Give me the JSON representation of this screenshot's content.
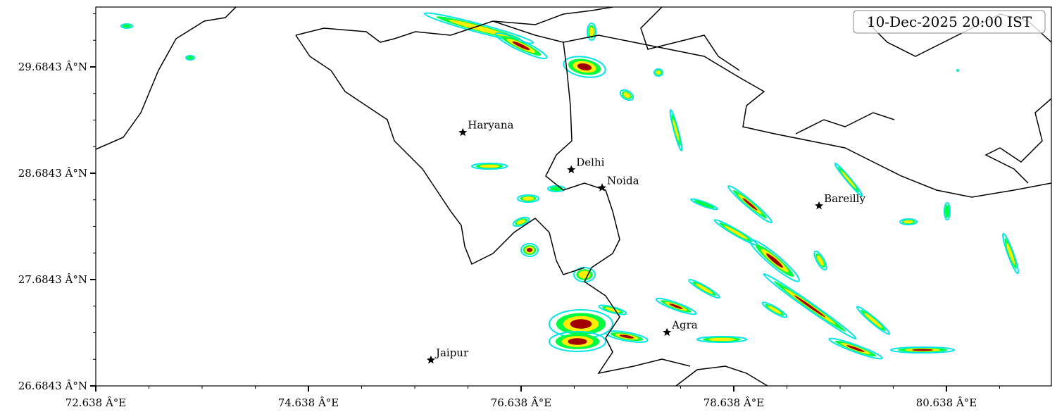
{
  "chart_data": {
    "type": "map",
    "timestamp": "10-Dec-2025 20:00 IST",
    "xlim": [
      72.638,
      81.625
    ],
    "ylim": [
      26.6843,
      30.247
    ],
    "xticks": [
      {
        "value": 72.638,
        "label": "72.638 Â°E"
      },
      {
        "value": 74.638,
        "label": "74.638 Â°E"
      },
      {
        "value": 76.638,
        "label": "76.638 Â°E"
      },
      {
        "value": 78.638,
        "label": "78.638 Â°E"
      },
      {
        "value": 80.638,
        "label": "80.638 Â°E"
      }
    ],
    "yticks": [
      {
        "value": 26.6843,
        "label": "26.6843 Â°N"
      },
      {
        "value": 27.6843,
        "label": "27.6843 Â°N"
      },
      {
        "value": 28.6843,
        "label": "28.6843 Â°N"
      },
      {
        "value": 29.6843,
        "label": "29.6843 Â°N"
      }
    ],
    "cities": {
      "names": [
        "Haryana",
        "Delhi",
        "Noida",
        "Bareilly",
        "Agra",
        "Jaipur"
      ],
      "lon": [
        76.09,
        77.11,
        77.4,
        79.44,
        78.01,
        75.79
      ],
      "lat": [
        29.07,
        28.72,
        28.55,
        28.38,
        27.19,
        26.93
      ]
    }
  }
}
